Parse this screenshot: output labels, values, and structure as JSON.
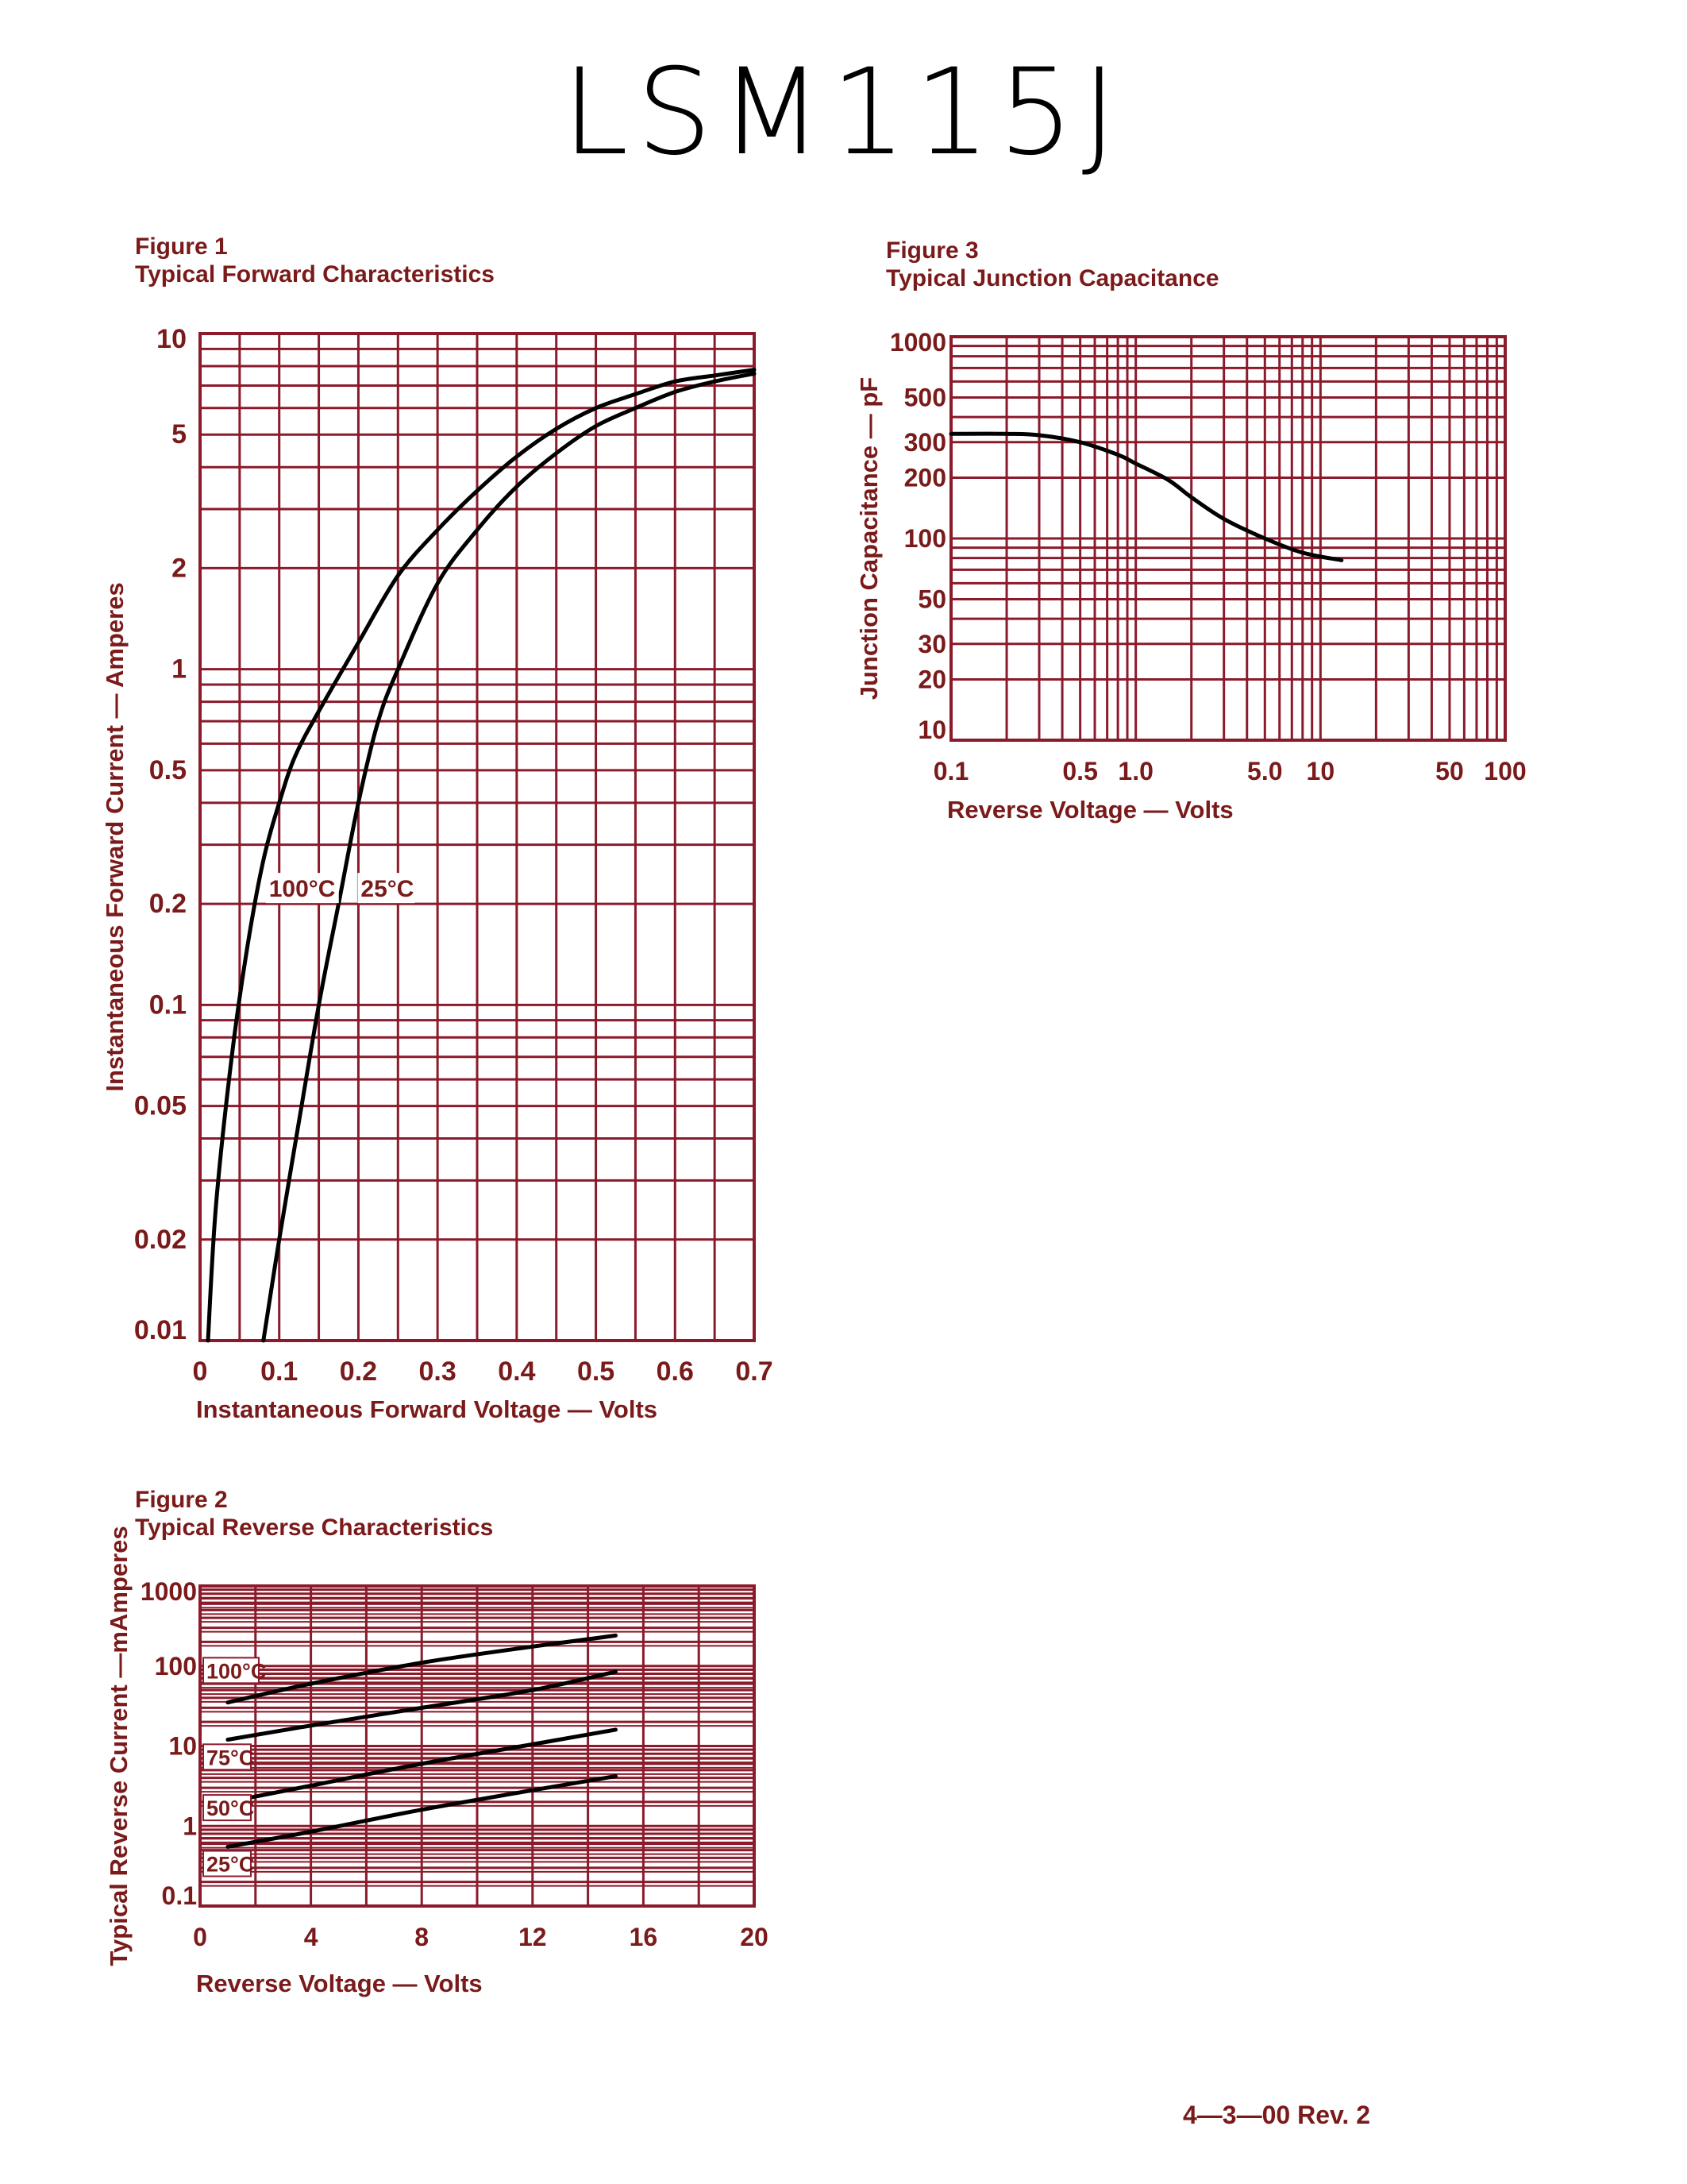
{
  "page": {
    "title": "LSM115J",
    "footer": "4—3—00   Rev. 2",
    "colors": {
      "grid": "#8b1a2b",
      "text": "#7a1a1a",
      "curve": "#000000"
    }
  },
  "chart_data": [
    {
      "type": "line",
      "figure_label": "Figure 1",
      "title": "Typical Forward Characteristics",
      "xlabel": "Instantaneous Forward Voltage — Volts",
      "ylabel": "Instantaneous Forward Current — Amperes",
      "xlim": [
        0,
        0.7
      ],
      "ylim": [
        0.01,
        10
      ],
      "yscale": "log",
      "grid": true,
      "xticks": [
        "0",
        "0.1",
        "0.2",
        "0.3",
        "0.4",
        "0.5",
        "0.6",
        "0.7"
      ],
      "yticks": [
        "10",
        "5",
        "2",
        "1",
        "0.5",
        "0.2",
        "0.1",
        "0.05",
        "0.02",
        "0.01"
      ],
      "series": [
        {
          "name": "100°C",
          "x": [
            0.01,
            0.02,
            0.04,
            0.06,
            0.08,
            0.1,
            0.12,
            0.15,
            0.2,
            0.25,
            0.3,
            0.35,
            0.4,
            0.45,
            0.5,
            0.55,
            0.6,
            0.65,
            0.7
          ],
          "y": [
            0.01,
            0.025,
            0.07,
            0.15,
            0.27,
            0.4,
            0.55,
            0.75,
            1.2,
            1.9,
            2.6,
            3.4,
            4.3,
            5.2,
            6.0,
            6.6,
            7.2,
            7.5,
            7.8
          ]
        },
        {
          "name": "25°C",
          "x": [
            0.08,
            0.1,
            0.125,
            0.15,
            0.175,
            0.2,
            0.225,
            0.25,
            0.3,
            0.35,
            0.4,
            0.45,
            0.5,
            0.55,
            0.6,
            0.65,
            0.7
          ],
          "y": [
            0.01,
            0.02,
            0.045,
            0.1,
            0.2,
            0.4,
            0.7,
            1.0,
            1.8,
            2.6,
            3.5,
            4.4,
            5.3,
            6.0,
            6.7,
            7.2,
            7.6
          ]
        }
      ]
    },
    {
      "type": "line",
      "figure_label": "Figure 2",
      "title": "Typical Reverse Characteristics",
      "xlabel": "Reverse Voltage — Volts",
      "ylabel": "Typical Reverse Current —mAmperes",
      "xlim": [
        0,
        20
      ],
      "ylim": [
        0.1,
        1000
      ],
      "yscale": "log",
      "grid": true,
      "xticks": [
        "0",
        "4",
        "8",
        "12",
        "16",
        "20"
      ],
      "yticks": [
        "1000",
        "100",
        "10",
        "1",
        "0.1"
      ],
      "series": [
        {
          "name": "100°C",
          "x": [
            1,
            4,
            8,
            12,
            15
          ],
          "y": [
            35,
            60,
            110,
            175,
            240
          ]
        },
        {
          "name": "75°C",
          "x": [
            1,
            4,
            8,
            12,
            15
          ],
          "y": [
            12,
            18,
            30,
            50,
            85
          ]
        },
        {
          "name": "50°C",
          "x": [
            1,
            4,
            8,
            12,
            15
          ],
          "y": [
            2.0,
            3.2,
            6.0,
            10.5,
            16
          ]
        },
        {
          "name": "25°C",
          "x": [
            1,
            4,
            8,
            12,
            15
          ],
          "y": [
            0.55,
            0.85,
            1.6,
            2.8,
            4.2
          ]
        }
      ]
    },
    {
      "type": "line",
      "figure_label": "Figure 3",
      "title": "Typical Junction Capacitance",
      "xlabel": "Reverse Voltage — Volts",
      "ylabel": "Junction Capacitance — pF",
      "xlim": [
        0.1,
        100
      ],
      "ylim": [
        10,
        1000
      ],
      "xscale": "log",
      "yscale": "log",
      "grid": true,
      "xticks": [
        "0.1",
        "0.5",
        "1.0",
        "5.0",
        "10",
        "50",
        "100"
      ],
      "yticks": [
        "1000",
        "500",
        "300",
        "200",
        "100",
        "50",
        "30",
        "20",
        "10"
      ],
      "series": [
        {
          "x": [
            0.1,
            0.2,
            0.3,
            0.5,
            0.8,
            1.0,
            1.5,
            2.0,
            3.0,
            5.0,
            8.0,
            13.0
          ],
          "y": [
            330,
            330,
            325,
            300,
            260,
            235,
            195,
            160,
            125,
            100,
            85,
            78
          ]
        }
      ]
    }
  ]
}
